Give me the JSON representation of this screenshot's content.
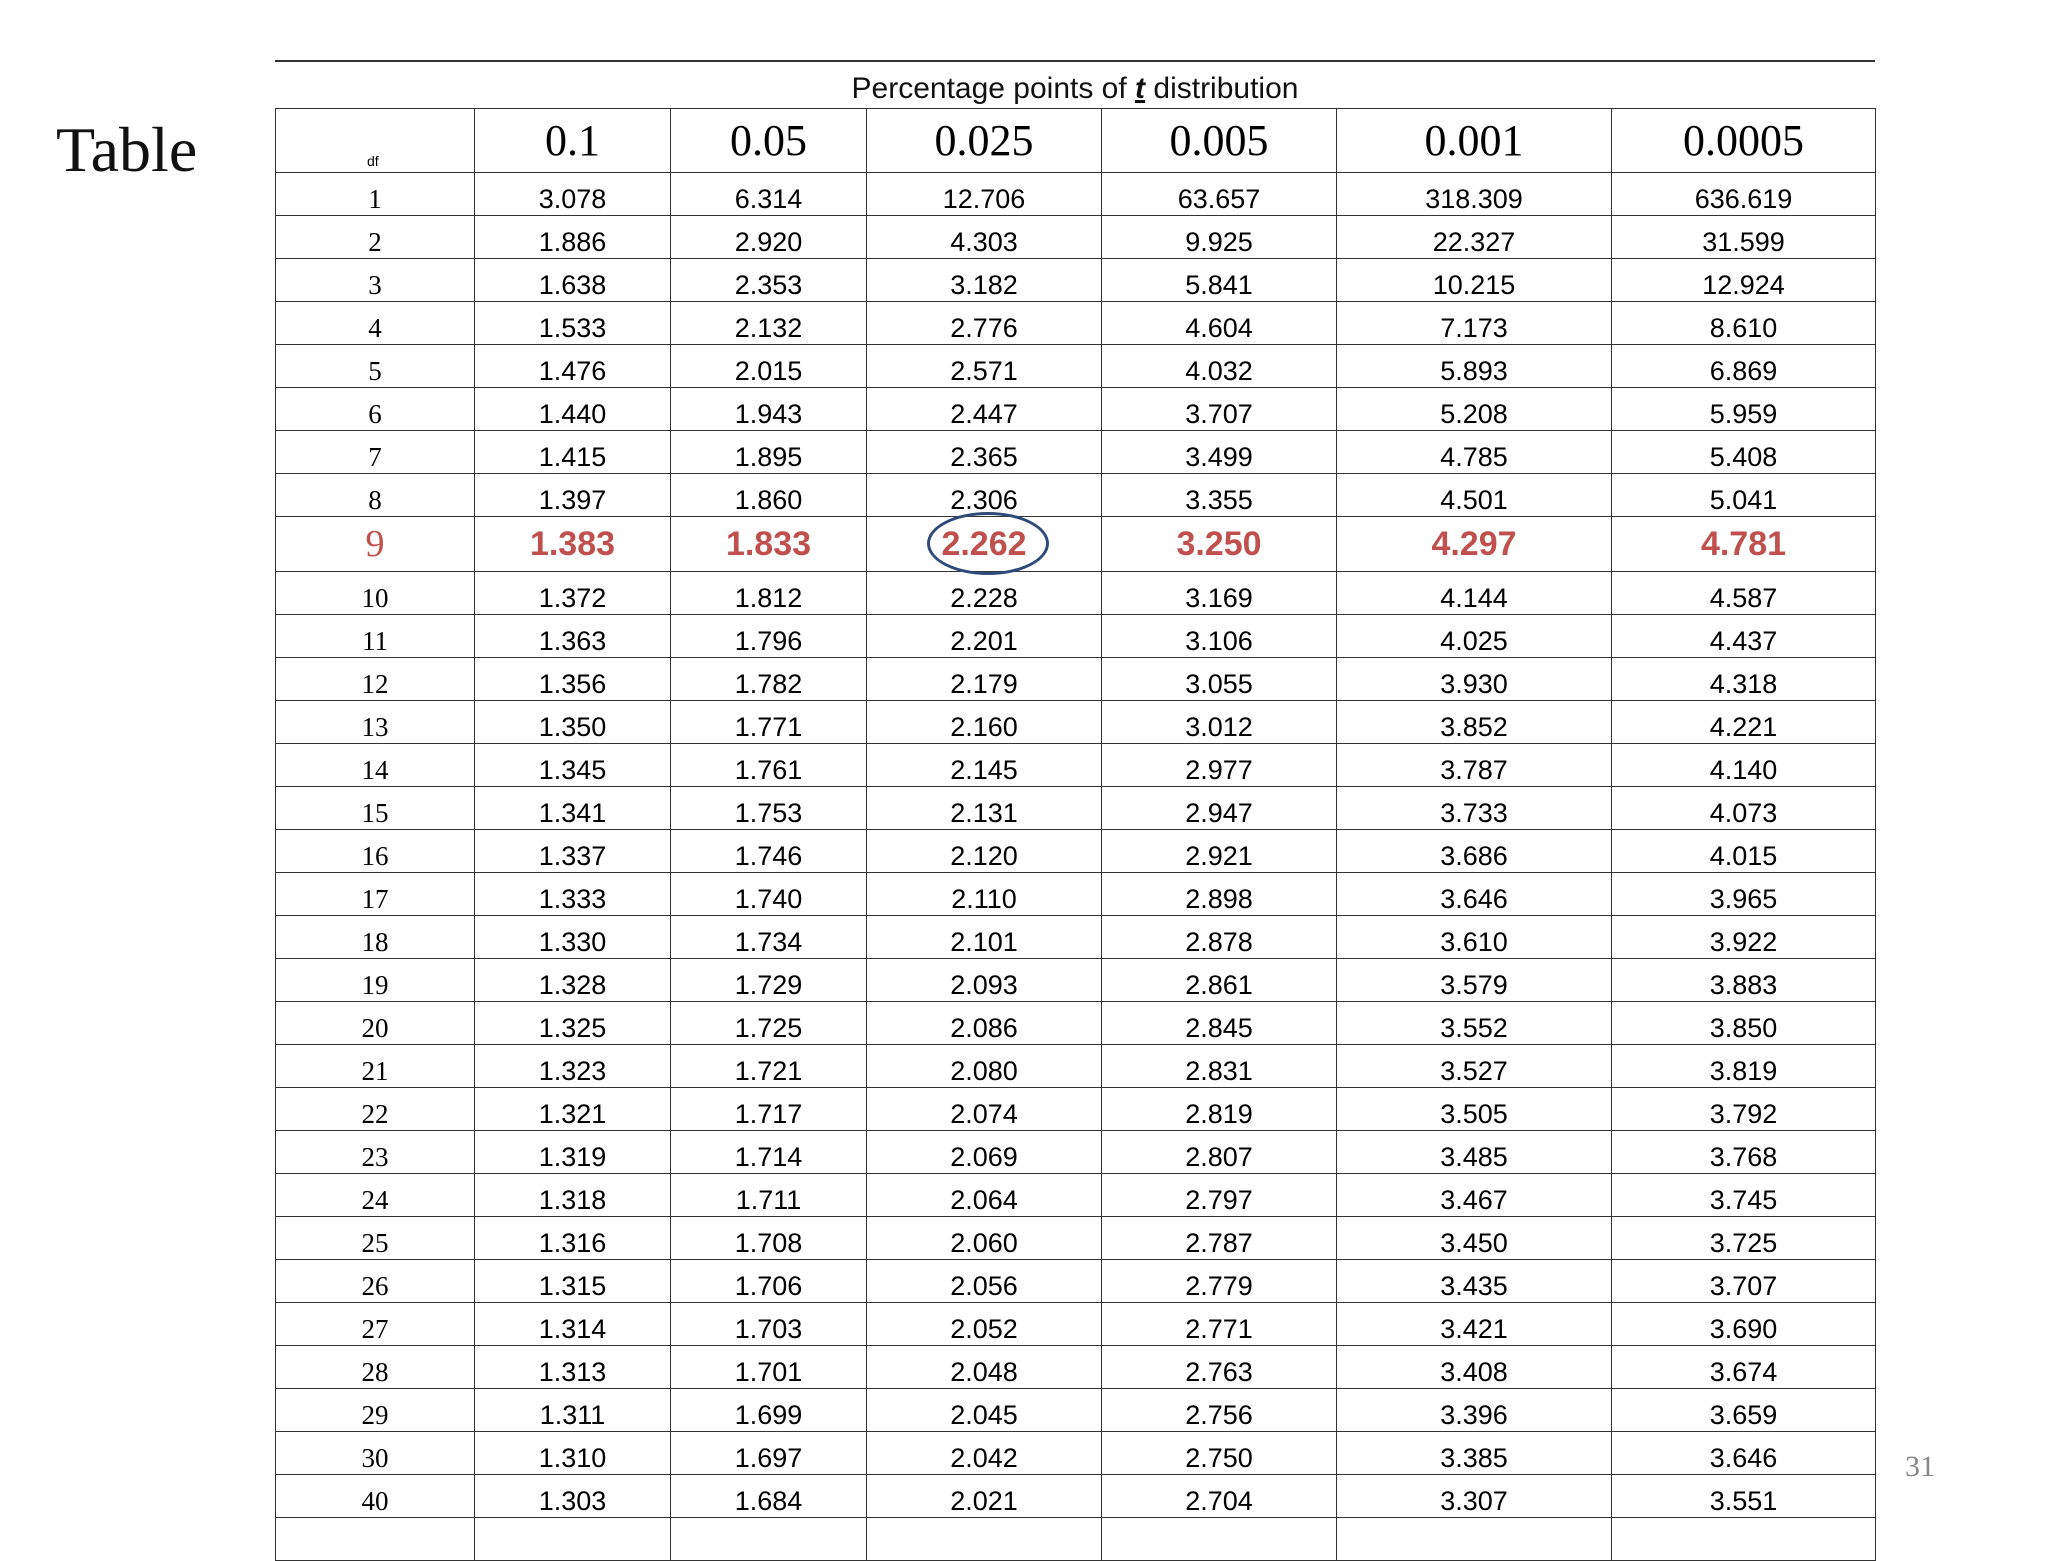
{
  "slide": {
    "title": "Table",
    "page_number": "31"
  },
  "table": {
    "caption_before": "Percentage points of ",
    "caption_symbol": "t",
    "caption_after": " distribution",
    "df_label": "df",
    "columns": [
      "0.1",
      "0.05",
      "0.025",
      "0.005",
      "0.001",
      "0.0005"
    ],
    "highlight_row_df": "9",
    "circled_value": "2.262",
    "rows": [
      {
        "df": "1",
        "v": [
          "3.078",
          "6.314",
          "12.706",
          "63.657",
          "318.309",
          "636.619"
        ]
      },
      {
        "df": "2",
        "v": [
          "1.886",
          "2.920",
          "4.303",
          "9.925",
          "22.327",
          "31.599"
        ]
      },
      {
        "df": "3",
        "v": [
          "1.638",
          "2.353",
          "3.182",
          "5.841",
          "10.215",
          "12.924"
        ]
      },
      {
        "df": "4",
        "v": [
          "1.533",
          "2.132",
          "2.776",
          "4.604",
          "7.173",
          "8.610"
        ]
      },
      {
        "df": "5",
        "v": [
          "1.476",
          "2.015",
          "2.571",
          "4.032",
          "5.893",
          "6.869"
        ]
      },
      {
        "df": "6",
        "v": [
          "1.440",
          "1.943",
          "2.447",
          "3.707",
          "5.208",
          "5.959"
        ]
      },
      {
        "df": "7",
        "v": [
          "1.415",
          "1.895",
          "2.365",
          "3.499",
          "4.785",
          "5.408"
        ]
      },
      {
        "df": "8",
        "v": [
          "1.397",
          "1.860",
          "2.306",
          "3.355",
          "4.501",
          "5.041"
        ]
      },
      {
        "df": "9",
        "v": [
          "1.383",
          "1.833",
          "2.262",
          "3.250",
          "4.297",
          "4.781"
        ]
      },
      {
        "df": "10",
        "v": [
          "1.372",
          "1.812",
          "2.228",
          "3.169",
          "4.144",
          "4.587"
        ]
      },
      {
        "df": "11",
        "v": [
          "1.363",
          "1.796",
          "2.201",
          "3.106",
          "4.025",
          "4.437"
        ]
      },
      {
        "df": "12",
        "v": [
          "1.356",
          "1.782",
          "2.179",
          "3.055",
          "3.930",
          "4.318"
        ]
      },
      {
        "df": "13",
        "v": [
          "1.350",
          "1.771",
          "2.160",
          "3.012",
          "3.852",
          "4.221"
        ]
      },
      {
        "df": "14",
        "v": [
          "1.345",
          "1.761",
          "2.145",
          "2.977",
          "3.787",
          "4.140"
        ]
      },
      {
        "df": "15",
        "v": [
          "1.341",
          "1.753",
          "2.131",
          "2.947",
          "3.733",
          "4.073"
        ]
      },
      {
        "df": "16",
        "v": [
          "1.337",
          "1.746",
          "2.120",
          "2.921",
          "3.686",
          "4.015"
        ]
      },
      {
        "df": "17",
        "v": [
          "1.333",
          "1.740",
          "2.110",
          "2.898",
          "3.646",
          "3.965"
        ]
      },
      {
        "df": "18",
        "v": [
          "1.330",
          "1.734",
          "2.101",
          "2.878",
          "3.610",
          "3.922"
        ]
      },
      {
        "df": "19",
        "v": [
          "1.328",
          "1.729",
          "2.093",
          "2.861",
          "3.579",
          "3.883"
        ]
      },
      {
        "df": "20",
        "v": [
          "1.325",
          "1.725",
          "2.086",
          "2.845",
          "3.552",
          "3.850"
        ]
      },
      {
        "df": "21",
        "v": [
          "1.323",
          "1.721",
          "2.080",
          "2.831",
          "3.527",
          "3.819"
        ]
      },
      {
        "df": "22",
        "v": [
          "1.321",
          "1.717",
          "2.074",
          "2.819",
          "3.505",
          "3.792"
        ]
      },
      {
        "df": "23",
        "v": [
          "1.319",
          "1.714",
          "2.069",
          "2.807",
          "3.485",
          "3.768"
        ]
      },
      {
        "df": "24",
        "v": [
          "1.318",
          "1.711",
          "2.064",
          "2.797",
          "3.467",
          "3.745"
        ]
      },
      {
        "df": "25",
        "v": [
          "1.316",
          "1.708",
          "2.060",
          "2.787",
          "3.450",
          "3.725"
        ]
      },
      {
        "df": "26",
        "v": [
          "1.315",
          "1.706",
          "2.056",
          "2.779",
          "3.435",
          "3.707"
        ]
      },
      {
        "df": "27",
        "v": [
          "1.314",
          "1.703",
          "2.052",
          "2.771",
          "3.421",
          "3.690"
        ]
      },
      {
        "df": "28",
        "v": [
          "1.313",
          "1.701",
          "2.048",
          "2.763",
          "3.408",
          "3.674"
        ]
      },
      {
        "df": "29",
        "v": [
          "1.311",
          "1.699",
          "2.045",
          "2.756",
          "3.396",
          "3.659"
        ]
      },
      {
        "df": "30",
        "v": [
          "1.310",
          "1.697",
          "2.042",
          "2.750",
          "3.385",
          "3.646"
        ]
      },
      {
        "df": "40",
        "v": [
          "1.303",
          "1.684",
          "2.021",
          "2.704",
          "3.307",
          "3.551"
        ]
      },
      {
        "df": "",
        "v": [
          "",
          "",
          "",
          "",
          "",
          ""
        ]
      }
    ]
  },
  "colors": {
    "highlight_text": "#c0504d",
    "circle": "#2e4a7a",
    "page_number": "#888888"
  }
}
